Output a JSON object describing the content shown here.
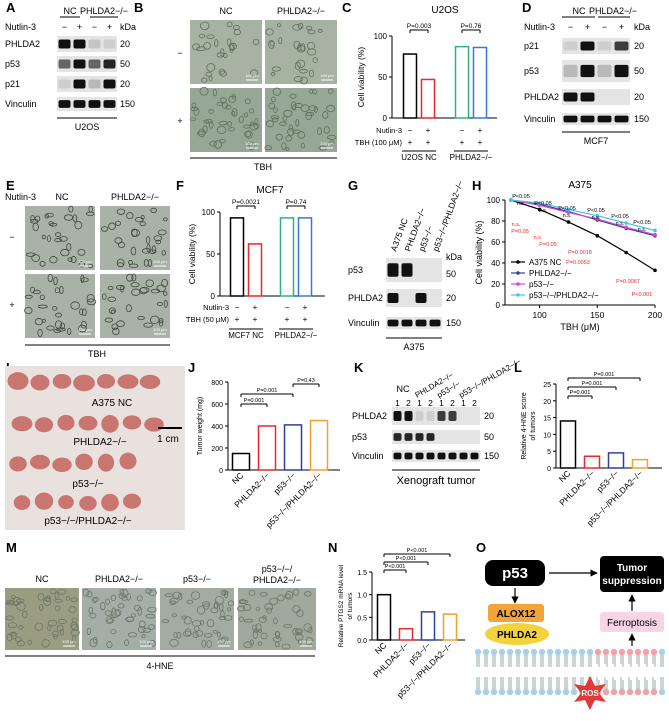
{
  "panel_labels": [
    "A",
    "B",
    "C",
    "D",
    "E",
    "F",
    "G",
    "H",
    "I",
    "J",
    "K",
    "L",
    "M",
    "N",
    "O"
  ],
  "panels": {
    "A": {
      "treatment": "Nutlin-3",
      "groups": [
        "NC",
        "PHLDA2−/−"
      ],
      "signs": [
        "−",
        "+",
        "−",
        "+"
      ],
      "unit": "kDa",
      "proteins": [
        "PHLDA2",
        "p53",
        "p21",
        "Vinculin"
      ],
      "kda": [
        20,
        50,
        20,
        150
      ],
      "cell_line": "U2OS"
    },
    "B": {
      "conditions": [
        "NC",
        "PHLDA2−/−"
      ],
      "rows": [
        "−",
        "+"
      ],
      "scale": "100 μm",
      "treatment": "TBH"
    },
    "C": {
      "type": "bar",
      "title": "U2OS",
      "y_label": "Cell viability (%)",
      "values": [
        78,
        47,
        87,
        86
      ],
      "colors": [
        "#000000",
        "#e8282b",
        "#2fb37a",
        "#3a78d8"
      ],
      "ylim": [
        0,
        100
      ],
      "yticks": [
        0,
        50,
        100
      ],
      "pvalues": [
        "P=0.003",
        "P=0.76"
      ],
      "rows": [
        {
          "name": "Nutlin-3",
          "signs": [
            "−",
            "+",
            "−",
            "+"
          ]
        },
        {
          "name": "TBH (100 μM)",
          "signs": [
            "+",
            "+",
            "+",
            "+"
          ]
        }
      ],
      "groups": [
        "U2OS NC",
        "PHLDA2−/−"
      ]
    },
    "D": {
      "treatment": "Nutlin-3",
      "groups": [
        "NC",
        "PHLDA2−/−"
      ],
      "signs": [
        "−",
        "+",
        "−",
        "+"
      ],
      "unit": "kDa",
      "proteins": [
        "p21",
        "p53",
        "PHLDA2",
        "Vinculin"
      ],
      "kda": [
        20,
        50,
        20,
        150
      ],
      "cell_line": "MCF7"
    },
    "E": {
      "treatment_row": "Nutlin-3",
      "conditions": [
        "NC",
        "PHLDA2−/−"
      ],
      "rows": [
        "−",
        "+"
      ],
      "scale": "100 μm",
      "treatment": "TBH"
    },
    "F": {
      "type": "bar",
      "title": "MCF7",
      "y_label": "Cell viability (%)",
      "values": [
        93,
        62,
        93,
        93
      ],
      "colors": [
        "#000000",
        "#e8282b",
        "#2fb37a",
        "#3a78d8"
      ],
      "ylim": [
        0,
        100
      ],
      "yticks": [
        0,
        50,
        100
      ],
      "pvalues": [
        "P=0.0021",
        "P=0.74"
      ],
      "rows": [
        {
          "name": "Nutlin-3",
          "signs": [
            "−",
            "+",
            "−",
            "+"
          ]
        },
        {
          "name": "TBH (50 μM)",
          "signs": [
            "+",
            "+",
            "+",
            "+"
          ]
        }
      ],
      "groups": [
        "MCF7 NC",
        "PHLDA2−/−"
      ]
    },
    "G": {
      "lanes": [
        "A375 NC",
        "PHLDA2−/−",
        "p53−/−",
        "p53−/−/PHLDA2−/−"
      ],
      "proteins": [
        "p53",
        "PHLDA2",
        "Vinculin"
      ],
      "unit": "kDa",
      "kda": [
        50,
        20,
        150
      ],
      "cell_line": "A375"
    },
    "H": {
      "type": "line",
      "title": "A375",
      "x_label": "TBH (μM)",
      "y_label": "Cell viability (%)",
      "x": [
        75,
        100,
        125,
        150,
        175,
        200
      ],
      "xlim": [
        70,
        200
      ],
      "xticks": [
        100,
        150,
        200
      ],
      "ylim": [
        0,
        100
      ],
      "yticks": [
        0,
        20,
        40,
        60,
        80,
        100
      ],
      "series": [
        {
          "name": "A375 NC",
          "color": "#000000",
          "values": [
            100,
            91,
            79,
            66,
            50,
            33
          ]
        },
        {
          "name": "PHLDA2−/−",
          "color": "#2e3fa0",
          "values": [
            100,
            96,
            89,
            81,
            73,
            66
          ]
        },
        {
          "name": "p53−/−",
          "color": "#e040e0",
          "values": [
            100,
            95,
            88,
            82,
            74,
            67
          ]
        },
        {
          "name": "p53−/−/PHLDA2−/−",
          "color": "#40c8e0",
          "values": [
            100,
            97,
            91,
            85,
            78,
            71
          ]
        }
      ],
      "annotations": [
        {
          "text": "P<0.05",
          "color": "#000000"
        },
        {
          "text": "n.s.",
          "color": "#000000"
        },
        {
          "text": "P<0.05",
          "color": "#000000"
        },
        {
          "text": "n.s.",
          "color": "#000000"
        },
        {
          "text": "P<0.05",
          "color": "#000000"
        },
        {
          "text": "n.s.",
          "color": "#000000"
        },
        {
          "text": "P<0.05",
          "color": "#000000"
        },
        {
          "text": "n.s.",
          "color": "#000000"
        },
        {
          "text": "P<0.05",
          "color": "#000000"
        },
        {
          "text": "n.s.",
          "color": "#000000"
        },
        {
          "text": "P<0.05",
          "color": "#000000"
        },
        {
          "text": "n.s.",
          "color": "#000000"
        },
        {
          "text": "n.s.",
          "color": "#e8282b"
        },
        {
          "text": "P=0.05",
          "color": "#e8282b"
        },
        {
          "text": "n.s.",
          "color": "#e8282b"
        },
        {
          "text": "P=0.05",
          "color": "#e8282b"
        },
        {
          "text": "P=0.0018",
          "color": "#e8282b"
        },
        {
          "text": "P=0.0053",
          "color": "#e8282b"
        },
        {
          "text": "P=0.0067",
          "color": "#e8282b"
        },
        {
          "text": "P<0.001",
          "color": "#e8282b"
        }
      ]
    },
    "I": {
      "labels": [
        "A375 NC",
        "PHLDA2−/−",
        "p53−/−",
        "p53−/−/PHLDA2−/−"
      ],
      "scale": "1 cm"
    },
    "J": {
      "type": "bar",
      "y_label": "Tumor weight (mg)",
      "categories": [
        "NC",
        "PHLDA2−/−",
        "p53−/−",
        "p53−/−/PHLDA2−/−"
      ],
      "values": [
        150,
        400,
        410,
        450
      ],
      "colors": [
        "#000000",
        "#e8282b",
        "#2e3fa0",
        "#f0a030"
      ],
      "ylim": [
        0,
        800
      ],
      "yticks": [
        0,
        200,
        400,
        600,
        800
      ],
      "pvalues": [
        "P=0.001",
        "P=0.001",
        "P=0.43"
      ]
    },
    "K": {
      "groups": [
        "NC",
        "PHLDA2−/−",
        "p53−/−",
        "p53−/−/PHLDA2−/−"
      ],
      "lane_numbers": [
        1,
        2
      ],
      "proteins": [
        "PHLDA2",
        "p53",
        "Vinculin"
      ],
      "kda": [
        20,
        50,
        150
      ],
      "caption": "Xenograft tumor"
    },
    "L": {
      "type": "bar",
      "y_label": [
        "Relative 4-HNE score",
        "of tumors"
      ],
      "categories": [
        "NC",
        "PHLDA2−/−",
        "p53−/−",
        "p53−/−/PHLDA2−/−"
      ],
      "values": [
        14,
        3.5,
        4.5,
        2.5
      ],
      "colors": [
        "#000000",
        "#e8282b",
        "#2e3fa0",
        "#f0a030"
      ],
      "ylim": [
        0,
        25
      ],
      "yticks": [
        0,
        5,
        10,
        15,
        20,
        25
      ],
      "pvalues": [
        "P=0.001",
        "P=0.001",
        "P=0.001"
      ]
    },
    "M": {
      "labels": [
        "NC",
        "PHLDA2−/−",
        "p53−/−",
        [
          "p53−/−/",
          "PHLDA2−/−"
        ]
      ],
      "scale": "100 μm",
      "caption": "4-HNE"
    },
    "N": {
      "type": "bar",
      "y_label": [
        "Relative PTGS2 mRNA level",
        "of tumors"
      ],
      "categories": [
        "NC",
        "PHLDA2−/−",
        "p53−/−",
        "p53−/−/PHLDA2−/−"
      ],
      "values": [
        1.0,
        0.25,
        0.62,
        0.57
      ],
      "colors": [
        "#000000",
        "#e8282b",
        "#2e3fa0",
        "#f0a030"
      ],
      "ylim": [
        0,
        1.5
      ],
      "yticks": [
        {
          "value": 0,
          "label": "0.0"
        },
        0.5,
        {
          "value": 1,
          "label": "1.0"
        },
        1.5
      ],
      "pvalues": [
        "P<0.001",
        "P<0.001",
        "P<0.001"
      ]
    },
    "O": {
      "p53": "p53",
      "alox12": "ALOX12",
      "phlda2": "PHLDA2",
      "tumor_suppression": [
        "Tumor",
        "suppression"
      ],
      "ferroptosis": "Ferroptosis",
      "ros": "ROS"
    }
  }
}
